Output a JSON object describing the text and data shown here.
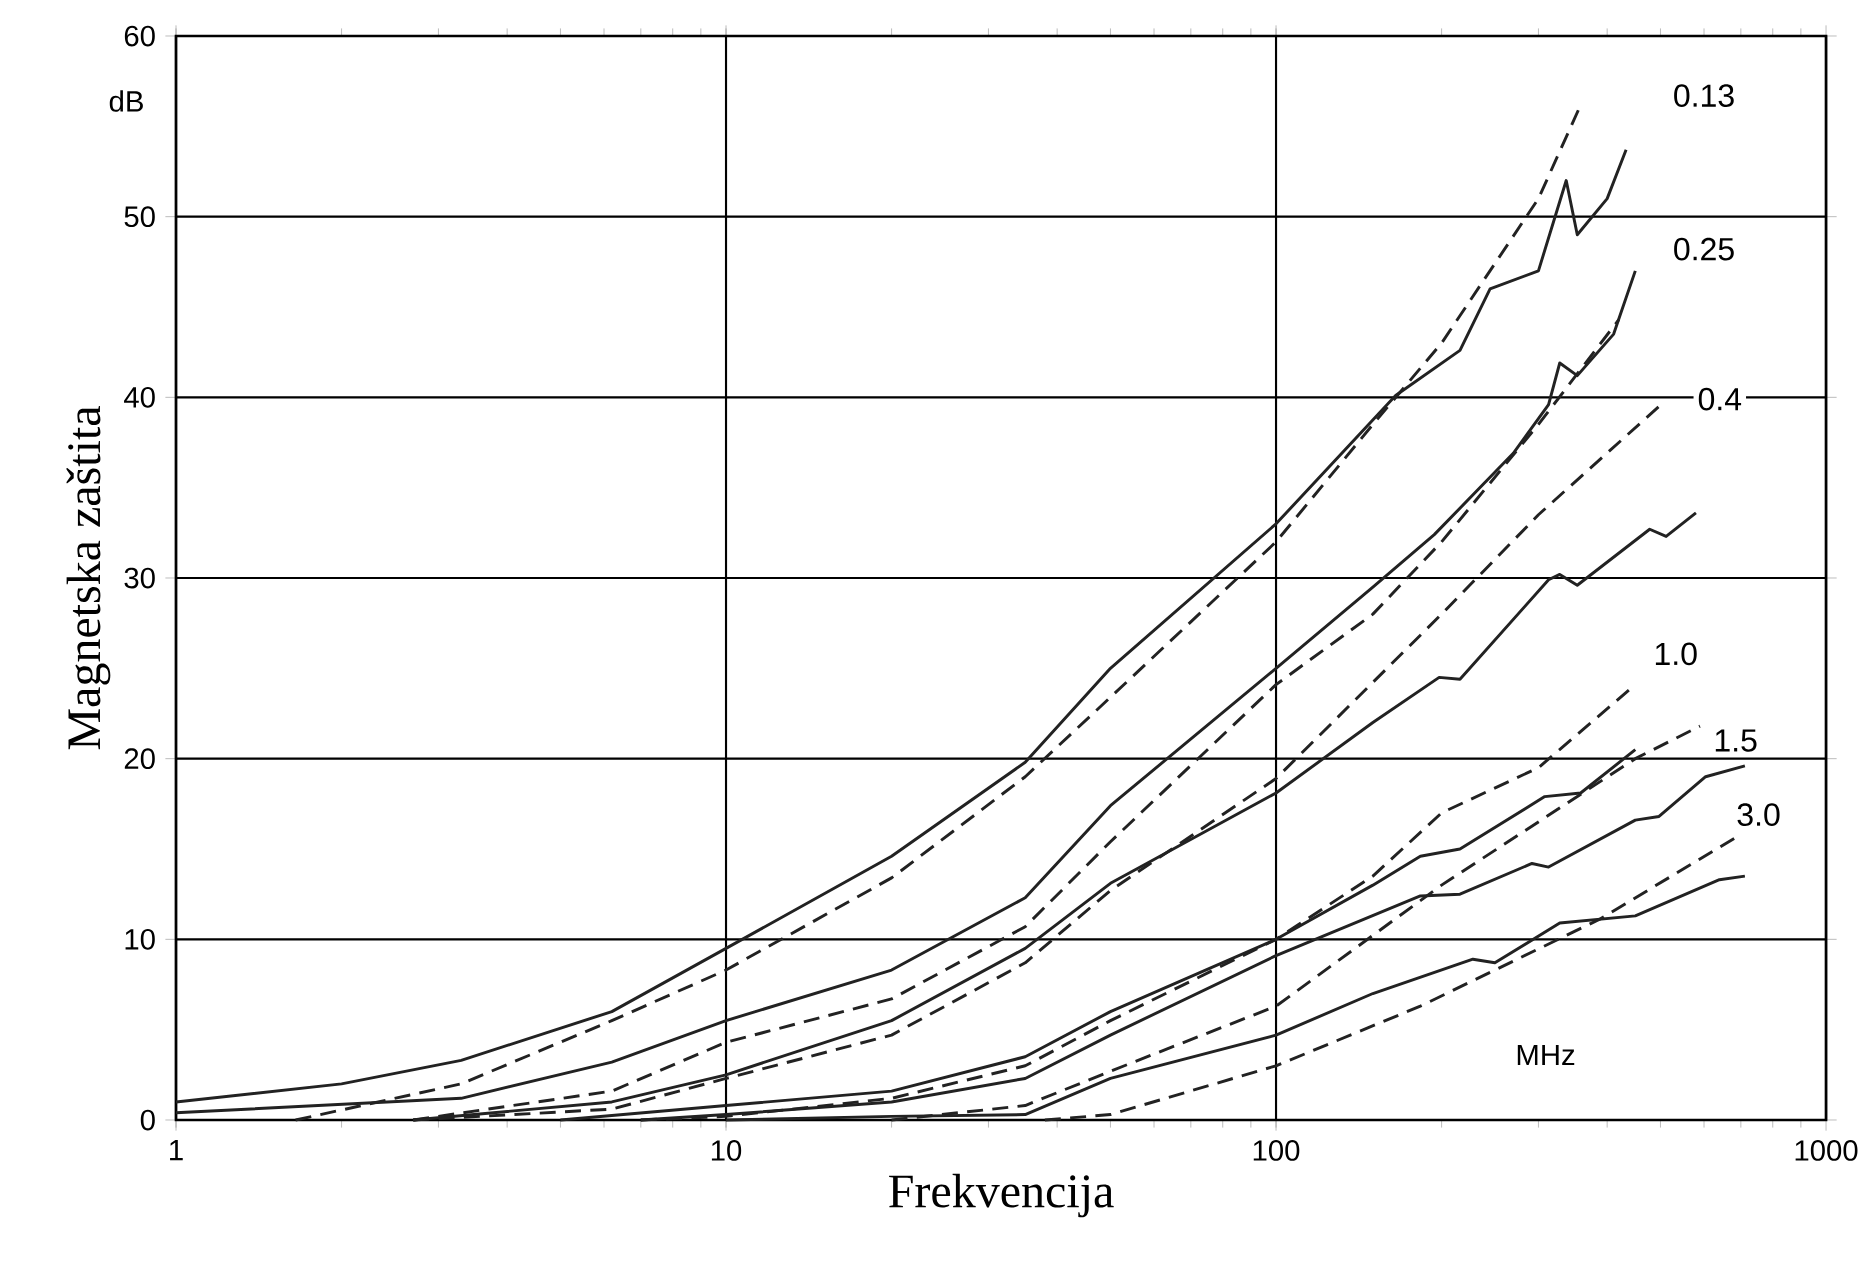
{
  "chart_data": {
    "type": "line",
    "xlabel": "Frekvencija",
    "ylabel": "Magnetska zaštita",
    "log": "x",
    "grid": true,
    "legend": false,
    "marker": "none",
    "xlim": [
      1,
      1000
    ],
    "ylim": [
      0,
      60
    ],
    "xticks": [
      1,
      10,
      100,
      1000
    ],
    "yticks": [
      0,
      10,
      20,
      30,
      40,
      50,
      60
    ],
    "series": [
      {
        "color": "#222222",
        "line_style": "solid",
        "x": [
          1,
          2,
          3.3,
          6.2,
          10,
          20,
          35,
          50,
          100,
          165,
          216,
          245,
          300,
          337,
          353,
          400,
          433
        ],
        "values": [
          1.0,
          2.0,
          3.3,
          6.0,
          9.5,
          14.6,
          19.8,
          25.0,
          33.0,
          40.1,
          42.6,
          46.0,
          47.0,
          52.0,
          49.0,
          51.0,
          53.7
        ]
      },
      {
        "color": "#222222",
        "line_style": "dashed",
        "x": [
          1.65,
          3.3,
          6.2,
          10,
          20,
          35,
          50,
          100,
          150,
          200,
          300,
          357
        ],
        "values": [
          0,
          2.0,
          5.5,
          8.3,
          13.4,
          19.0,
          23.4,
          32.0,
          38.5,
          43.0,
          51.0,
          56.1
        ]
      },
      {
        "color": "#222222",
        "line_style": "solid",
        "x": [
          1,
          3.3,
          6.2,
          10,
          20,
          35,
          50,
          100,
          150,
          194,
          270,
          313,
          328,
          353,
          411,
          450
        ],
        "values": [
          0.4,
          1.2,
          3.2,
          5.5,
          8.3,
          12.3,
          17.4,
          25.0,
          29.5,
          32.4,
          36.9,
          39.6,
          41.9,
          41.2,
          43.5,
          47.0
        ]
      },
      {
        "color": "#222222",
        "line_style": "dashed",
        "x": [
          2.7,
          6.2,
          10,
          20,
          35,
          50,
          100,
          150,
          200,
          300,
          420
        ],
        "values": [
          0,
          1.6,
          4.3,
          6.7,
          10.7,
          15.4,
          24.1,
          28.0,
          32.0,
          38.5,
          44.3
        ]
      },
      {
        "color": "#222222",
        "line_style": "solid",
        "x": [
          2.7,
          6.2,
          10,
          20,
          35,
          50,
          100,
          150,
          198,
          216,
          313,
          328,
          353,
          478,
          512,
          580
        ],
        "values": [
          0,
          1.0,
          2.5,
          5.5,
          9.5,
          13.1,
          18.1,
          22.0,
          24.5,
          24.4,
          29.9,
          30.2,
          29.6,
          32.7,
          32.3,
          33.6
        ]
      },
      {
        "color": "#222222",
        "line_style": "dashed",
        "x": [
          2.7,
          6.2,
          10,
          20,
          35,
          50,
          100,
          200,
          300,
          497
        ],
        "values": [
          0,
          0.6,
          2.3,
          4.7,
          8.7,
          12.7,
          18.9,
          28.0,
          33.5,
          39.5
        ]
      },
      {
        "color": "#222222",
        "line_style": "solid",
        "x": [
          5,
          10,
          20,
          35,
          50,
          100,
          150,
          183,
          216,
          308,
          358,
          450
        ],
        "values": [
          0,
          0.8,
          1.6,
          3.5,
          6.0,
          10.0,
          13.0,
          14.6,
          15.0,
          17.9,
          18.1,
          20.5
        ]
      },
      {
        "color": "#222222",
        "line_style": "dashed",
        "x": [
          7,
          10,
          20,
          35,
          50,
          100,
          150,
          200,
          300,
          450
        ],
        "values": [
          0,
          0.2,
          1.2,
          3.0,
          5.5,
          10.0,
          13.5,
          17.0,
          19.5,
          24.1
        ]
      },
      {
        "color": "#222222",
        "line_style": "solid",
        "x": [
          7,
          10,
          20,
          35,
          50,
          100,
          183,
          216,
          292,
          313,
          450,
          497,
          604,
          712
        ],
        "values": [
          0,
          0.3,
          1.0,
          2.3,
          4.7,
          9.1,
          12.4,
          12.5,
          14.2,
          14.0,
          16.6,
          16.8,
          19.0,
          19.6
        ]
      },
      {
        "color": "#222222",
        "line_style": "dashed",
        "x": [
          20,
          35,
          50,
          100,
          200,
          450,
          590
        ],
        "values": [
          0,
          0.8,
          2.7,
          6.3,
          13.0,
          20.0,
          21.8
        ]
      },
      {
        "color": "#222222",
        "line_style": "solid",
        "x": [
          10,
          20,
          35,
          50,
          100,
          150,
          228,
          250,
          328,
          450,
          640,
          712
        ],
        "values": [
          0,
          0.2,
          0.3,
          2.3,
          4.7,
          7.0,
          8.9,
          8.7,
          10.9,
          11.3,
          13.3,
          13.5
        ]
      },
      {
        "color": "#222222",
        "line_style": "dashed",
        "x": [
          38,
          50,
          100,
          183,
          387,
          700
        ],
        "values": [
          0,
          0.3,
          3.0,
          6.3,
          11.1,
          15.8
        ]
      }
    ],
    "annotations": [
      "dB",
      "MHz",
      {
        "text": "0.13",
        "x": 600,
        "y": 56.7
      },
      {
        "text": "0.25",
        "x": 600,
        "y": 48.2
      },
      {
        "text": "0.4",
        "x": 641,
        "y": 39.9
      },
      {
        "text": "1.0",
        "x": 533,
        "y": 25.8
      },
      {
        "text": "1.5",
        "x": 685,
        "y": 21.0
      },
      {
        "text": "3.0",
        "x": 754,
        "y": 16.9
      }
    ]
  }
}
